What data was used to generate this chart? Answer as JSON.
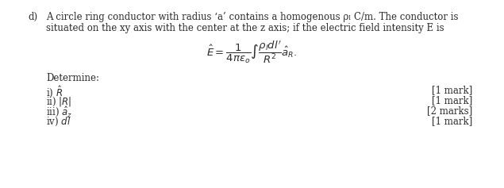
{
  "background_color": "#ffffff",
  "label_d": "d)",
  "line1": "A circle ring conductor with radius ‘a’ contains a homogenous ρₗ C/m. The conductor is",
  "line2": "situated on the xy axis with the center at the z axis; if the electric field intensity E is",
  "formula": "$\\hat{E} = \\dfrac{1}{4\\pi\\varepsilon_o}\\int\\dfrac{\\rho_l dl'}{R^2}\\hat{a}_R.$",
  "determine_label": "Determine:",
  "items": [
    {
      "label": "i) $\\hat{R}$",
      "mark": "[1 mark]"
    },
    {
      "label": "ii) $|R|$",
      "mark": "[1 mark]"
    },
    {
      "label": "iii) $\\hat{a}_z$",
      "mark": "[2 marks]"
    },
    {
      "label": "iv) $dl$",
      "mark": "[1 mark]"
    }
  ],
  "font_size_body": 8.5,
  "font_size_formula": 9.5,
  "text_color": "#2b2b2b",
  "fig_width": 6.35,
  "fig_height": 2.37,
  "dpi": 100
}
